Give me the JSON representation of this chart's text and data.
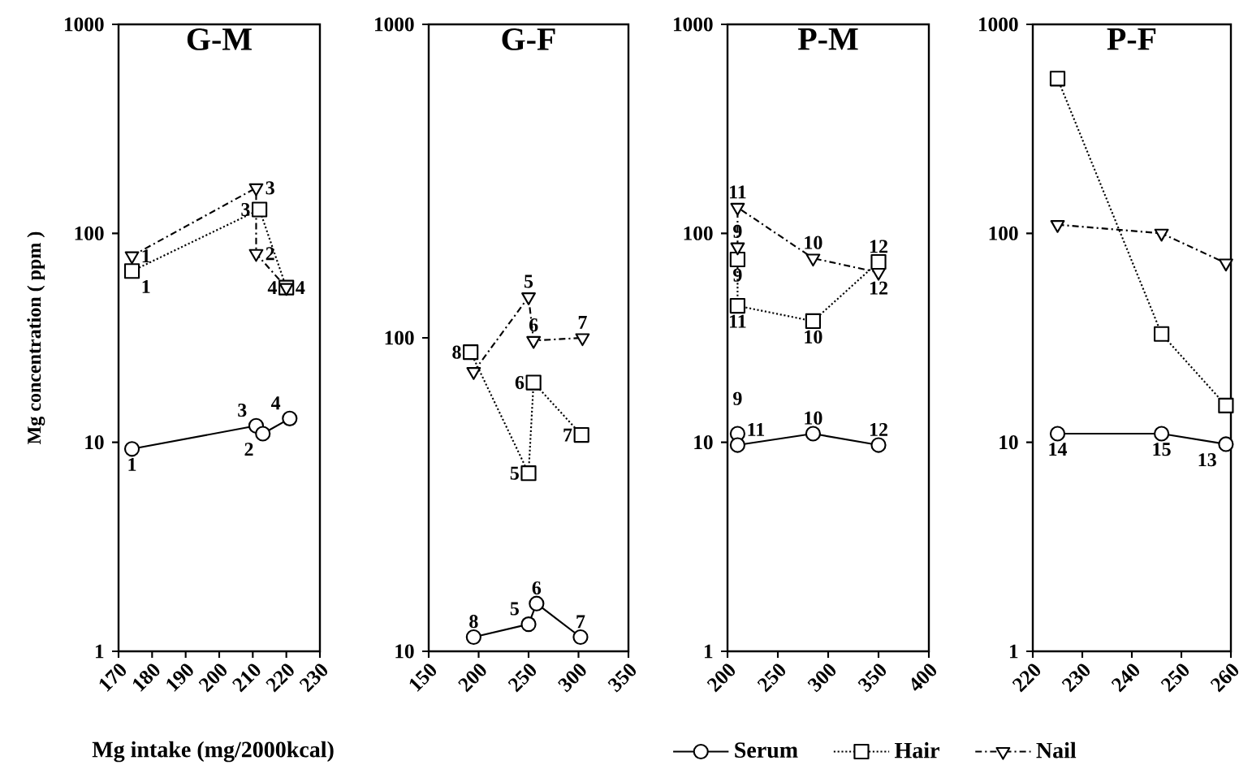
{
  "chart_data": [
    {
      "type": "line",
      "title": "G-M",
      "ylabel": "Mg concentration ( ppm )",
      "xlabel": "Mg intake (mg/2000kcal)",
      "log": true,
      "xlim": [
        170,
        230
      ],
      "xticks": [
        170,
        180,
        190,
        200,
        210,
        220,
        230
      ],
      "ylim": [
        1,
        1000
      ],
      "yticks": [
        1,
        10,
        100,
        1000
      ],
      "series": [
        {
          "color": "#000000",
          "marker": "circle",
          "line_style": "solid",
          "x": [
            174,
            211,
            213,
            221
          ],
          "values": [
            9.3,
            12,
            11,
            13
          ]
        },
        {
          "color": "#000000",
          "marker": "square",
          "line_style": "dotted",
          "x": [
            174,
            212,
            220
          ],
          "values": [
            66,
            130,
            55
          ]
        },
        {
          "color": "#000000",
          "marker": "triangle",
          "line_style": "dashed",
          "x": [
            174,
            211,
            211,
            220
          ],
          "values": [
            78,
            165,
            80,
            55
          ]
        }
      ],
      "annotations": [
        {
          "text": "1",
          "x": 174,
          "y": 78
        },
        {
          "text": "1",
          "x": 174,
          "y": 66
        },
        {
          "text": "3",
          "x": 211,
          "y": 165
        },
        {
          "text": "3",
          "x": 212,
          "y": 130
        },
        {
          "text": "2",
          "x": 211,
          "y": 80
        },
        {
          "text": "4",
          "x": 220,
          "y": 55
        },
        {
          "text": "4",
          "x": 220,
          "y": 55
        },
        {
          "text": "3",
          "x": 211,
          "y": 12
        },
        {
          "text": "2",
          "x": 213,
          "y": 11
        },
        {
          "text": "4",
          "x": 221,
          "y": 13
        },
        {
          "text": "1",
          "x": 174,
          "y": 9.3
        }
      ]
    },
    {
      "type": "line",
      "title": "G-F",
      "log": true,
      "xlim": [
        150,
        350
      ],
      "xticks": [
        150,
        200,
        250,
        300,
        350
      ],
      "ylim": [
        10,
        1000
      ],
      "yticks": [
        10,
        100,
        1000
      ],
      "series": [
        {
          "color": "#000000",
          "marker": "circle",
          "line_style": "solid",
          "x": [
            195,
            250,
            258,
            302
          ],
          "values": [
            11.1,
            12.2,
            14.2,
            11.1
          ]
        },
        {
          "color": "#000000",
          "marker": "square",
          "line_style": "dotted",
          "x": [
            192,
            250,
            255,
            303
          ],
          "values": [
            90,
            37,
            72,
            49
          ]
        },
        {
          "color": "#000000",
          "marker": "triangle",
          "line_style": "dashed",
          "x": [
            195,
            250,
            255,
            304
          ],
          "values": [
            78,
            135,
            98,
            100
          ]
        }
      ],
      "annotations": [
        {
          "text": "8",
          "x": 195,
          "y": 11.1
        },
        {
          "text": "5",
          "x": 250,
          "y": 12.2
        },
        {
          "text": "6",
          "x": 258,
          "y": 14.2
        },
        {
          "text": "7",
          "x": 302,
          "y": 11.1
        },
        {
          "text": "8",
          "x": 192,
          "y": 90
        },
        {
          "text": "5",
          "x": 250,
          "y": 37
        },
        {
          "text": "6",
          "x": 255,
          "y": 72
        },
        {
          "text": "7",
          "x": 303,
          "y": 49
        },
        {
          "text": "5",
          "x": 250,
          "y": 135
        },
        {
          "text": "6",
          "x": 255,
          "y": 98
        },
        {
          "text": "7",
          "x": 304,
          "y": 100
        }
      ]
    },
    {
      "type": "line",
      "title": "P-M",
      "log": true,
      "xlim": [
        200,
        400
      ],
      "xticks": [
        200,
        250,
        300,
        350,
        400
      ],
      "ylim": [
        1,
        1000
      ],
      "yticks": [
        1,
        10,
        100,
        1000
      ],
      "legend": "bottom",
      "series": [
        {
          "name": "Serum",
          "color": "#000000",
          "marker": "circle",
          "line_style": "solid",
          "x": [
            210,
            210,
            285,
            350
          ],
          "values": [
            11,
            9.7,
            11,
            9.7
          ]
        },
        {
          "name": "Hair",
          "color": "#000000",
          "marker": "square",
          "line_style": "dotted",
          "x": [
            210,
            210,
            285,
            350
          ],
          "values": [
            75,
            45,
            38,
            73
          ]
        },
        {
          "name": "Nail",
          "color": "#000000",
          "marker": "triangle",
          "line_style": "dashed",
          "x": [
            210,
            210,
            285,
            350
          ],
          "values": [
            86,
            133,
            76,
            65
          ]
        }
      ],
      "annotations": [
        {
          "text": "11",
          "x": 210,
          "y": 133
        },
        {
          "text": "9",
          "x": 210,
          "y": 86
        },
        {
          "text": "9",
          "x": 210,
          "y": 75
        },
        {
          "text": "11",
          "x": 210,
          "y": 45
        },
        {
          "text": "10",
          "x": 285,
          "y": 76
        },
        {
          "text": "10",
          "x": 285,
          "y": 38
        },
        {
          "text": "12",
          "x": 350,
          "y": 73
        },
        {
          "text": "12",
          "x": 350,
          "y": 65
        },
        {
          "text": "9",
          "x": 210,
          "y": 11
        },
        {
          "text": "11",
          "x": 210,
          "y": 9.7
        },
        {
          "text": "10",
          "x": 285,
          "y": 11
        },
        {
          "text": "12",
          "x": 350,
          "y": 9.7
        }
      ]
    },
    {
      "type": "line",
      "title": "P-F",
      "log": true,
      "xlim": [
        220,
        260
      ],
      "xticks": [
        220,
        230,
        240,
        250,
        260
      ],
      "ylim": [
        1,
        1000
      ],
      "yticks": [
        1,
        10,
        100,
        1000
      ],
      "series": [
        {
          "color": "#000000",
          "marker": "circle",
          "line_style": "solid",
          "x": [
            225,
            246,
            259
          ],
          "values": [
            11,
            11,
            9.8
          ]
        },
        {
          "color": "#000000",
          "marker": "square",
          "line_style": "dotted",
          "x": [
            225,
            246,
            259
          ],
          "values": [
            550,
            33,
            15
          ]
        },
        {
          "color": "#000000",
          "marker": "triangle",
          "line_style": "dashed",
          "x": [
            225,
            246,
            259
          ],
          "values": [
            110,
            100,
            72
          ]
        }
      ],
      "annotations": [
        {
          "text": "14",
          "x": 225,
          "y": 11
        },
        {
          "text": "15",
          "x": 246,
          "y": 11
        },
        {
          "text": "13",
          "x": 259,
          "y": 9.8
        }
      ]
    }
  ]
}
